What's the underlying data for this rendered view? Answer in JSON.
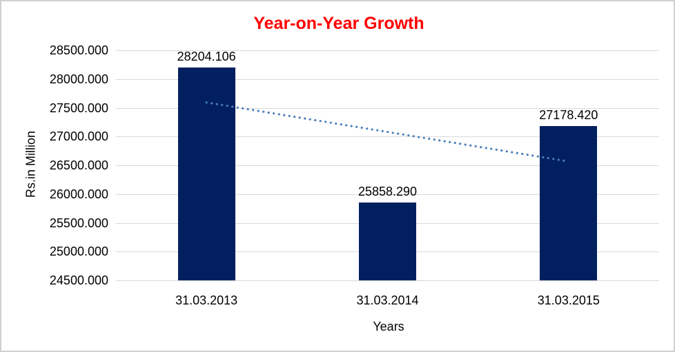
{
  "chart_data": {
    "type": "bar",
    "title": "Year-on-Year Growth",
    "title_color": "#FF0000",
    "xlabel": "Years",
    "ylabel": "Rs.in Million",
    "categories": [
      "31.03.2013",
      "31.03.2014",
      "31.03.2015"
    ],
    "values": [
      28204.106,
      25858.29,
      27178.42
    ],
    "value_labels": [
      "28204.106",
      "25858.290",
      "27178.420"
    ],
    "ylim": [
      24500,
      28500
    ],
    "ytick_step": 500,
    "ytick_labels": [
      "28500.000",
      "28000.000",
      "27500.000",
      "27000.000",
      "26500.000",
      "26000.000",
      "25500.000",
      "25000.000",
      "24500.000"
    ],
    "grid": true,
    "legend": "none",
    "bar_color": "#022060",
    "gridline_color": "#d9d9d9",
    "trendline": {
      "style": "dotted",
      "color": "#4a7ebb",
      "start_value": 27593.1,
      "end_value": 26567.4
    }
  }
}
